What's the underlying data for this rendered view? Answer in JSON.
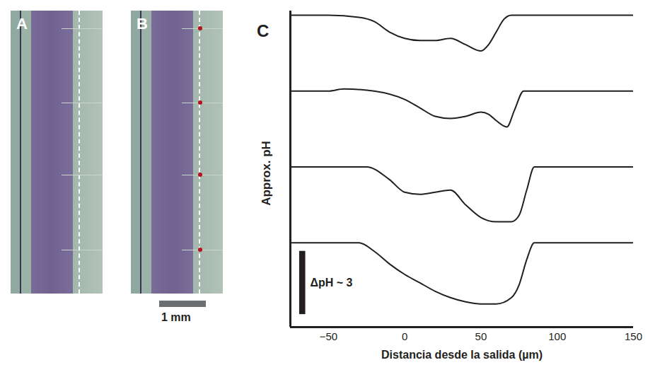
{
  "panels": [
    {
      "label": "A",
      "type": "image"
    },
    {
      "label": "B",
      "type": "image",
      "scale_bar_label": "1 mm"
    }
  ],
  "chart_data": {
    "panel_label": "C",
    "type": "line",
    "x_label": "Distancia desde la salida (µm)",
    "y_label": "Approx. pH",
    "xlim": [
      -75,
      150
    ],
    "xticks": [
      -50,
      0,
      50,
      100,
      150
    ],
    "ylim": [
      0,
      15
    ],
    "tick_labels": "x",
    "grid": false,
    "scale_bar": {
      "label": "ΔpH ~ 3",
      "value": 3
    },
    "series": [
      {
        "color": "#231f20",
        "x": [
          -75,
          -50,
          -30,
          -20,
          -10,
          0,
          10,
          20,
          30,
          40,
          50,
          55,
          60,
          65,
          70,
          150
        ],
        "values": [
          14.8,
          14.8,
          14.7,
          14.5,
          14.0,
          13.7,
          13.6,
          13.6,
          13.7,
          13.4,
          13.1,
          13.4,
          14.0,
          14.6,
          14.8,
          14.8
        ]
      },
      {
        "color": "#231f20",
        "x": [
          -75,
          -50,
          -40,
          -20,
          0,
          10,
          20,
          30,
          40,
          50,
          55,
          60,
          67,
          72,
          78,
          150
        ],
        "values": [
          11.2,
          11.2,
          11.3,
          11.2,
          10.8,
          10.4,
          10.0,
          9.9,
          10.0,
          10.2,
          10.1,
          9.8,
          9.5,
          10.3,
          11.2,
          11.2
        ]
      },
      {
        "color": "#231f20",
        "x": [
          -75,
          -25,
          -10,
          0,
          10,
          20,
          30,
          40,
          50,
          60,
          70,
          75,
          80,
          85,
          150
        ],
        "values": [
          7.6,
          7.6,
          7.0,
          6.4,
          6.3,
          6.4,
          6.5,
          5.8,
          5.2,
          5.0,
          5.0,
          5.3,
          6.5,
          7.6,
          7.6
        ]
      },
      {
        "color": "#231f20",
        "x": [
          -75,
          -30,
          -20,
          -10,
          0,
          10,
          20,
          30,
          40,
          50,
          60,
          70,
          75,
          80,
          85,
          150
        ],
        "values": [
          4.0,
          4.0,
          3.6,
          3.0,
          2.5,
          2.1,
          1.7,
          1.4,
          1.2,
          1.1,
          1.1,
          1.4,
          2.0,
          3.2,
          4.0,
          4.0
        ]
      }
    ]
  }
}
